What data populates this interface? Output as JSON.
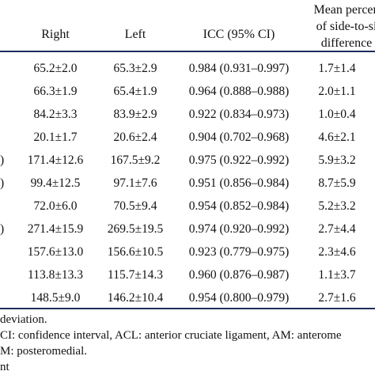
{
  "header": {
    "right": "Right",
    "left": "Left",
    "icc": "ICC (95% CI)",
    "mean_line1": "Mean percen",
    "mean_line2": "of side-to-si",
    "mean_line3": "difference"
  },
  "rows": [
    {
      "mark": "",
      "right": "65.2±2.0",
      "left": "65.3±2.9",
      "icc": "0.984 (0.931–0.997)",
      "mean": "1.7±1.4"
    },
    {
      "mark": "",
      "right": "66.3±1.9",
      "left": "65.4±1.9",
      "icc": "0.964 (0.888–0.988)",
      "mean": "2.0±1.1"
    },
    {
      "mark": "",
      "right": "84.2±3.3",
      "left": "83.9±2.9",
      "icc": "0.922 (0.834–0.973)",
      "mean": "1.0±0.4"
    },
    {
      "mark": "",
      "right": "20.1±1.7",
      "left": "20.6±2.4",
      "icc": "0.904 (0.702–0.968)",
      "mean": "4.6±2.1"
    },
    {
      "mark": ")",
      "right": "171.4±12.6",
      "left": "167.5±9.2",
      "icc": "0.975 (0.922–0.992)",
      "mean": "5.9±3.2"
    },
    {
      "mark": ")",
      "right": "99.4±12.5",
      "left": "97.1±7.6",
      "icc": "0.951 (0.856–0.984)",
      "mean": "8.7±5.9"
    },
    {
      "mark": "",
      "right": "72.0±6.0",
      "left": "70.5±9.4",
      "icc": "0.954 (0.852–0.984)",
      "mean": "5.2±3.2"
    },
    {
      "mark": ")",
      "right": "271.4±15.9",
      "left": "269.5±19.5",
      "icc": "0.974 (0.920–0.992)",
      "mean": "2.7±4.4"
    },
    {
      "mark": "",
      "right": "157.6±13.0",
      "left": "156.6±10.5",
      "icc": "0.923 (0.779–0.975)",
      "mean": "2.3±4.6"
    },
    {
      "mark": "",
      "right": "113.8±13.3",
      "left": "115.7±14.3",
      "icc": "0.960 (0.876–0.987)",
      "mean": "1.1±3.7"
    },
    {
      "mark": "",
      "right": "148.5±9.0",
      "left": "146.2±10.4",
      "icc": "0.954 (0.800–0.979)",
      "mean": "2.7±1.6"
    }
  ],
  "notes": {
    "line1": "deviation.",
    "line2": "CI: confidence interval, ACL: anterior cruciate ligament, AM: anterome",
    "line3": "M: posteromedial.",
    "line4": "nt"
  }
}
